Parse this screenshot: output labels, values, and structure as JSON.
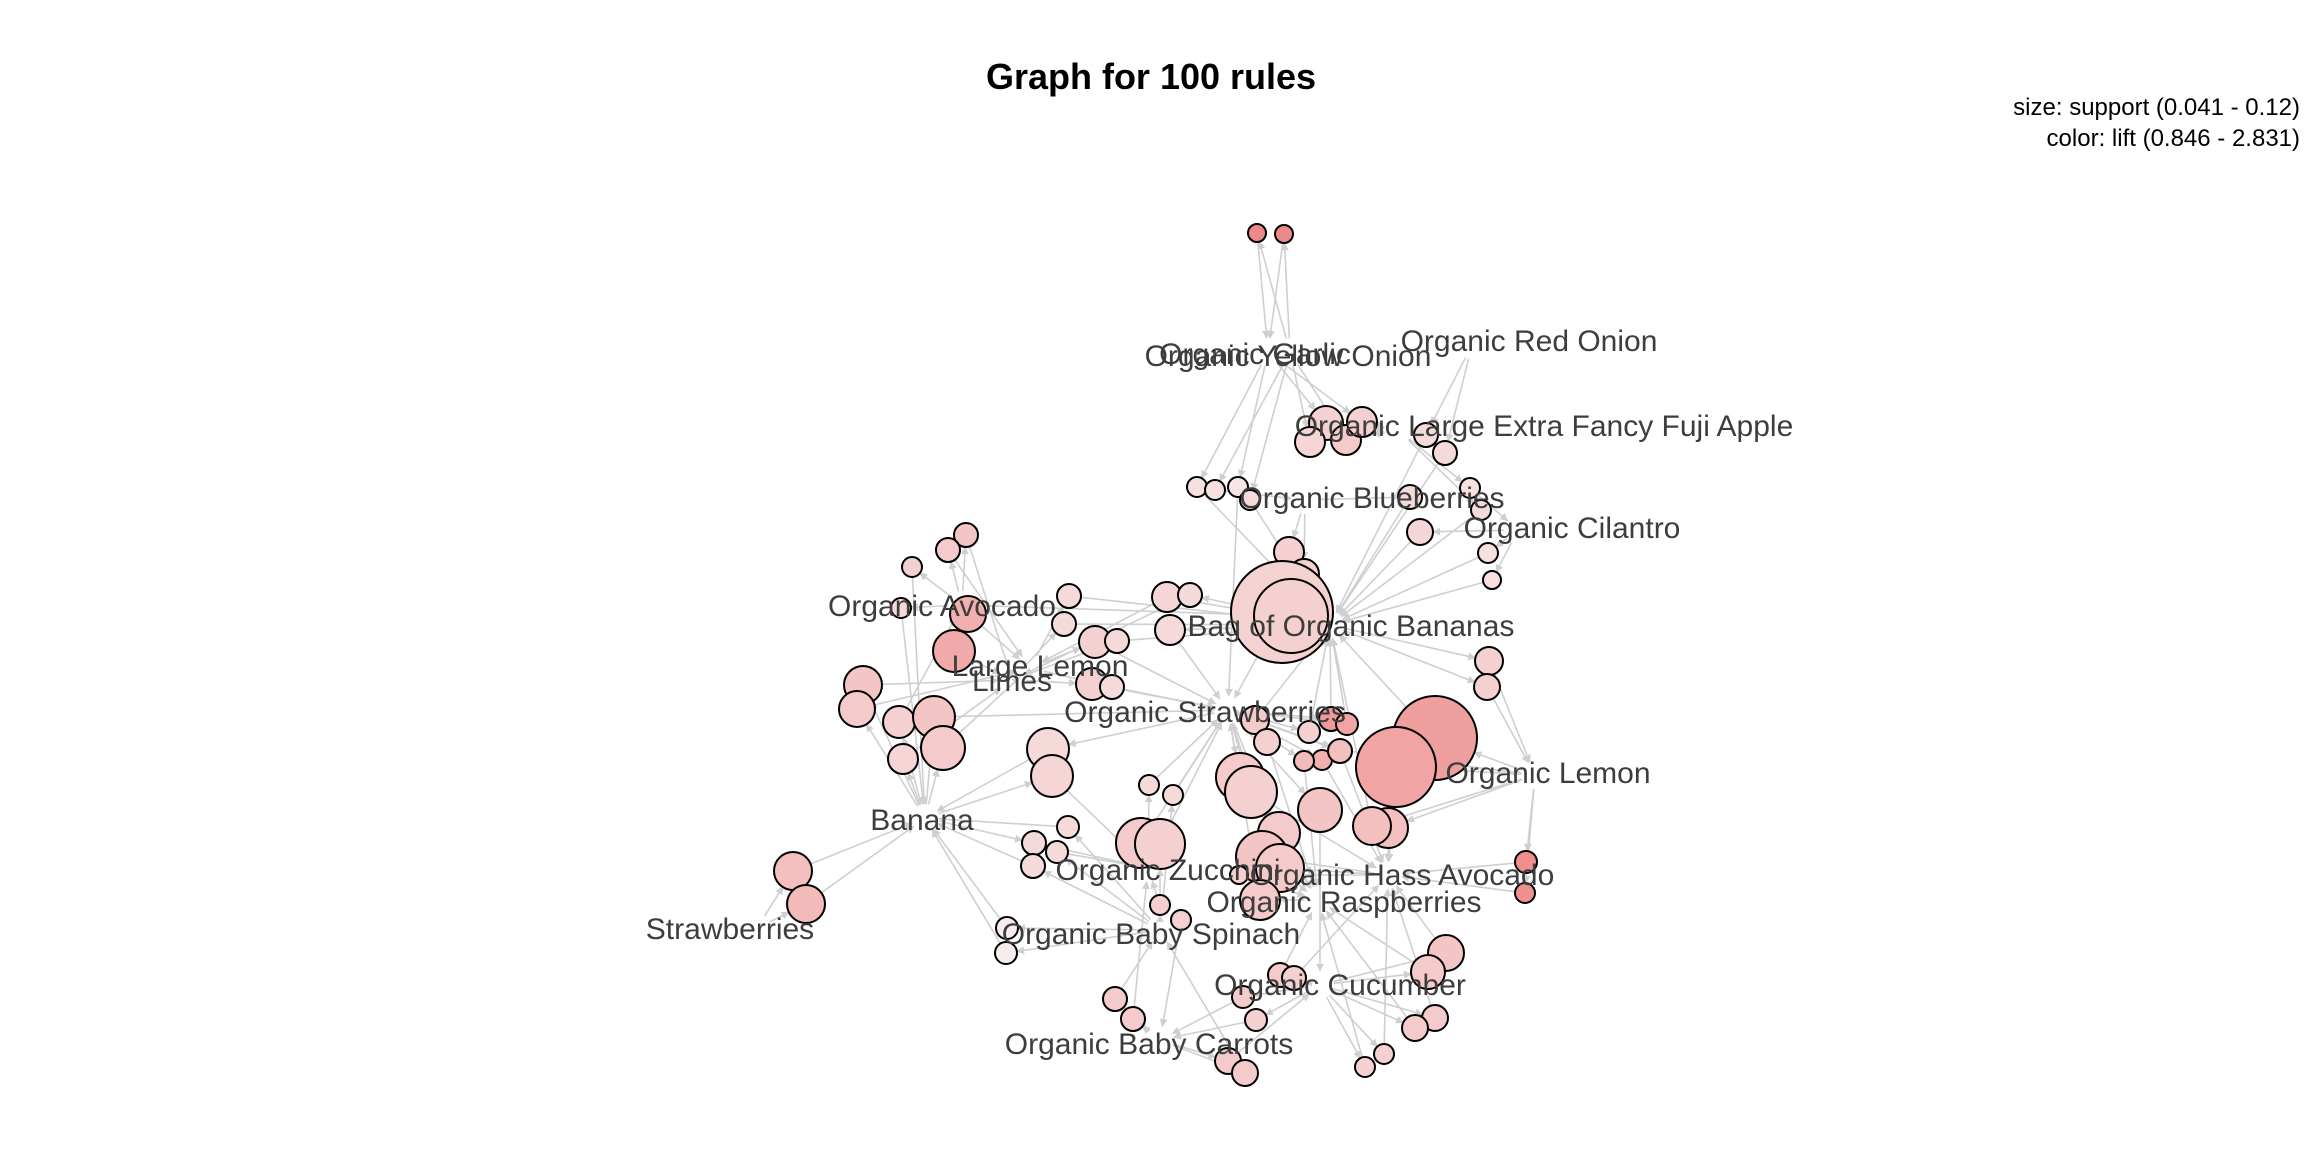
{
  "title": "Graph for 100 rules",
  "legend": {
    "size_text": "size: support (0.041 - 0.12)",
    "color_text": "color: lift (0.846 - 2.831)",
    "support_range": [
      0.041,
      0.12
    ],
    "lift_range": [
      0.846,
      2.831
    ]
  },
  "colors": {
    "low_lift": "#f7f0f0",
    "high_lift": "#ee8484",
    "edge": "#cfcfcf",
    "label": "#3d3d3d"
  },
  "items": [
    {
      "id": "organic-garlic",
      "label": "Organic Garlic"
    },
    {
      "id": "organic-yellow-onion",
      "label": "Organic Yellow Onion"
    },
    {
      "id": "organic-red-onion",
      "label": "Organic Red Onion"
    },
    {
      "id": "organic-fuji-apple",
      "label": "Organic Large Extra Fancy Fuji Apple"
    },
    {
      "id": "organic-blueberries",
      "label": "Organic Blueberries"
    },
    {
      "id": "organic-cilantro",
      "label": "Organic Cilantro"
    },
    {
      "id": "organic-avocado",
      "label": "Organic Avocado"
    },
    {
      "id": "bag-of-organic-bananas",
      "label": "Bag of Organic Bananas"
    },
    {
      "id": "large-lemon",
      "label": "Large Lemon"
    },
    {
      "id": "limes",
      "label": "Limes"
    },
    {
      "id": "organic-strawberries",
      "label": "Organic Strawberries"
    },
    {
      "id": "organic-lemon",
      "label": "Organic Lemon"
    },
    {
      "id": "banana",
      "label": "Banana"
    },
    {
      "id": "organic-zucchini",
      "label": "Organic Zucchini"
    },
    {
      "id": "organic-hass-avocado",
      "label": "Organic Hass Avocado"
    },
    {
      "id": "organic-raspberries",
      "label": "Organic Raspberries"
    },
    {
      "id": "strawberries",
      "label": "Strawberries"
    },
    {
      "id": "organic-baby-spinach",
      "label": "Organic Baby Spinach"
    },
    {
      "id": "organic-cucumber",
      "label": "Organic Cucumber"
    },
    {
      "id": "organic-baby-carrots",
      "label": "Organic Baby Carrots"
    }
  ]
}
